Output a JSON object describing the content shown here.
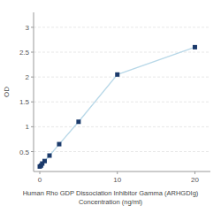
{
  "chart_data": {
    "type": "line",
    "x": [
      0,
      0.156,
      0.313,
      0.625,
      1.25,
      2.5,
      5,
      10,
      20
    ],
    "values": [
      0.2,
      0.22,
      0.26,
      0.31,
      0.42,
      0.65,
      1.1,
      2.05,
      2.6
    ],
    "color": "#b8d8e8",
    "colors": [
      "#1b3a6b",
      "#1b3a6b",
      "#1b3a6b",
      "#1b3a6b",
      "#1b3a6b",
      "#1b3a6b",
      "#1b3a6b",
      "#1b3a6b",
      "#1b3a6b"
    ],
    "marker": "square",
    "xlabel": "Human Rho GDP Dissociation Inhibitor Gamma (ARHGDIg)\nConcentration (ng/ml)",
    "ylabel": "OD",
    "xlim": [
      -0.8,
      22
    ],
    "ylim": [
      0.1,
      3.3
    ],
    "xticks": [
      0,
      10,
      20
    ],
    "yticks": [
      0.5,
      1,
      1.5,
      2,
      2.5,
      3
    ],
    "grid": "y"
  }
}
